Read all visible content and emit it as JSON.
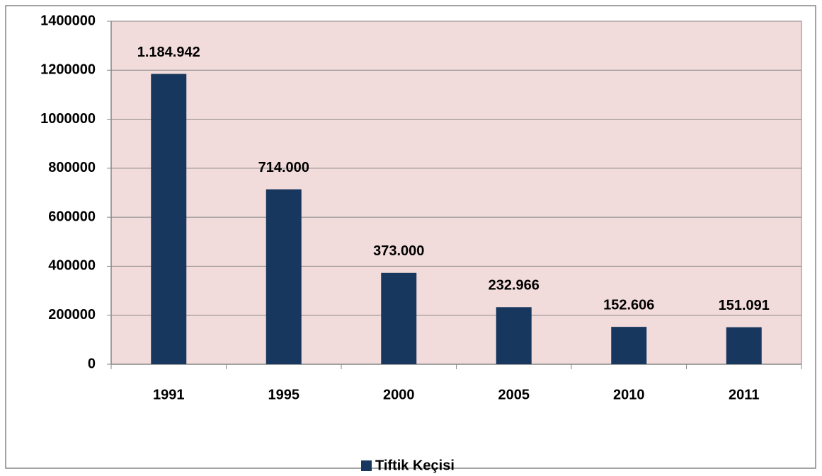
{
  "chart_data": {
    "type": "bar",
    "categories": [
      "1991",
      "1995",
      "2000",
      "2005",
      "2010",
      "2011"
    ],
    "series": [
      {
        "name": "Tiftik Keçisi",
        "color": "#17375e",
        "values": [
          1184942,
          714000,
          373000,
          232966,
          152606,
          151091
        ],
        "value_labels": [
          "1.184.942",
          "714.000",
          "373.000",
          "232.966",
          "152.606",
          "151.091"
        ]
      }
    ],
    "ylim": [
      0,
      1400000
    ],
    "yticks": [
      0,
      200000,
      400000,
      600000,
      800000,
      1000000,
      1200000,
      1400000
    ],
    "grid": true,
    "legend": "bottom",
    "plot_background": "#f2dcdb"
  }
}
